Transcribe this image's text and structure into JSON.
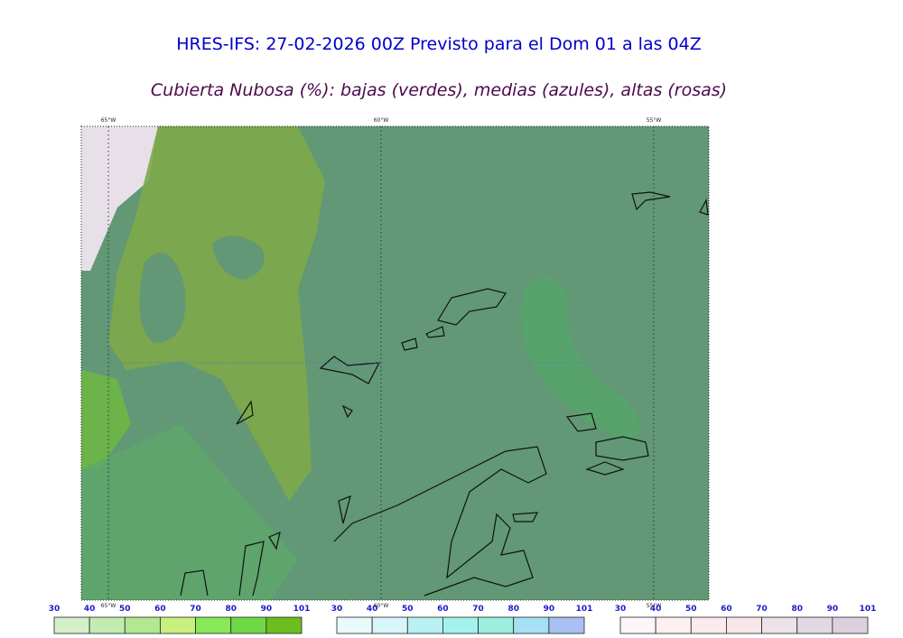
{
  "header": {
    "title": "HRES-IFS: 27-02-2026 00Z Previsto para el Dom 01 a las 04Z",
    "subtitle": "Cubierta Nubosa (%): bajas (verdes), medias (azules), altas (rosas)"
  },
  "map": {
    "lon_labels": [
      "65°W",
      "60°W",
      "55°W"
    ]
  },
  "colorbars": [
    {
      "ticks": [
        30,
        40,
        50,
        60,
        70,
        80,
        90,
        101
      ],
      "colors": [
        "#d3f0c8",
        "#c3ecb2",
        "#b2e890",
        "#c8f07e",
        "#88e85a",
        "#6ed846",
        "#6cbe1e"
      ]
    },
    {
      "ticks": [
        30,
        40,
        50,
        60,
        70,
        80,
        90,
        101
      ],
      "colors": [
        "#e8fafa",
        "#d6f6fa",
        "#b8f0f4",
        "#a4f2ee",
        "#9ceede",
        "#a6e0f4",
        "#a8c0f4"
      ]
    },
    {
      "ticks": [
        30,
        40,
        50,
        60,
        70,
        80,
        90,
        101
      ],
      "colors": [
        "#fdf6f8",
        "#fcf0f2",
        "#fbeaee",
        "#f8e6ea",
        "#eee2ea",
        "#e2d8e4",
        "#dcd0de"
      ]
    }
  ]
}
